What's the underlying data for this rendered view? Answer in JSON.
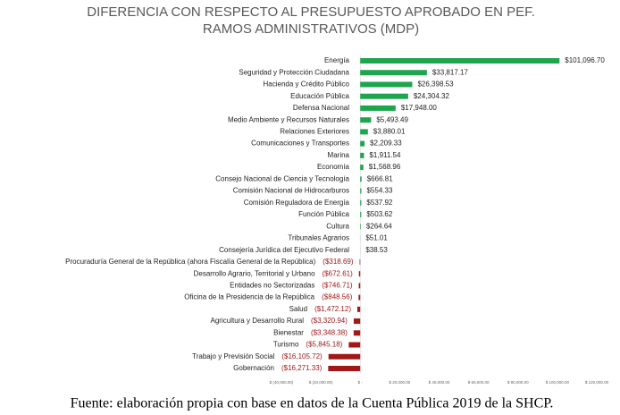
{
  "chart_data": {
    "type": "hbar",
    "title": "DIFERENCIA CON RESPECTO AL PRESUPUESTO APROBADO EN PEF.",
    "subtitle": "RAMOS ADMINISTRATIVOS (MDP)",
    "categories": [
      "Energía",
      "Seguridad y Protección Ciudadana",
      "Hacienda y Crédito Público",
      "Educación Pública",
      "Defensa Nacional",
      "Medio Ambiente y Recursos Naturales",
      "Relaciones Exteriores",
      "Comunicaciones y Transportes",
      "Marina",
      "Economía",
      "Consejo Nacional de Ciencia y Tecnología",
      "Comisión Nacional de Hidrocarburos",
      "Comisión Reguladora de Energía",
      "Función Pública",
      "Cultura",
      "Tribunales Agrarios",
      "Consejería Jurídica del Ejecutivo Federal",
      "Procuraduría General de la República (ahora Fiscalía General de la República)",
      "Desarrollo Agrario, Territorial y Urbano",
      "Entidades no Sectorizadas",
      "Oficina de la Presidencia de la República",
      "Salud",
      "Agricultura y Desarrollo Rural",
      "Bienestar",
      "Turismo",
      "Trabajo y Previsión Social",
      "Gobernación"
    ],
    "values": [
      101096.7,
      33817.17,
      26398.53,
      24304.32,
      17948.0,
      5493.49,
      3880.01,
      2209.33,
      1911.54,
      1568.96,
      666.81,
      554.33,
      537.92,
      503.62,
      264.64,
      51.01,
      38.53,
      -318.69,
      -672.61,
      -746.71,
      -848.56,
      -1472.12,
      -3320.94,
      -3348.38,
      -5845.18,
      -16105.72,
      -16271.33
    ],
    "value_labels": [
      "$101,096.70",
      "$33,817.17",
      "$26,398.53",
      "$24,304.32",
      "$17,948.00",
      "$5,493.49",
      "$3,880.01",
      "$2,209.33",
      "$1,911.54",
      "$1,568.96",
      "$666.81",
      "$554.33",
      "$537.92",
      "$503.62",
      "$264.64",
      "$51.01",
      "$38.53",
      "($318.69)",
      "($672.61)",
      "($746.71)",
      "($848.56)",
      "($1,472.12)",
      "($3,320.94)",
      "($3,348.38)",
      "($5,845.18)",
      "($16,105.72)",
      "($16,271.33)"
    ],
    "color": "#1fa54e",
    "negative_color": "#a01818",
    "xlim": [
      -40000,
      120000
    ],
    "xticks": [
      {
        "value": -40000,
        "label": "$ (40,000.00)"
      },
      {
        "value": -20000,
        "label": "$ (20,000.00)"
      },
      {
        "value": 0,
        "label": "$ -"
      },
      {
        "value": 20000,
        "label": "$ 20,000.00"
      },
      {
        "value": 40000,
        "label": "$ 40,000.00"
      },
      {
        "value": 60000,
        "label": "$ 60,000.00"
      },
      {
        "value": 80000,
        "label": "$ 80,000.00"
      },
      {
        "value": 100000,
        "label": "$ 100,000.00"
      },
      {
        "value": 120000,
        "label": "$ 120,000.00"
      }
    ],
    "source": "Fuente: elaboración propia con base en datos de la Cuenta Pública 2019 de la SHCP."
  }
}
